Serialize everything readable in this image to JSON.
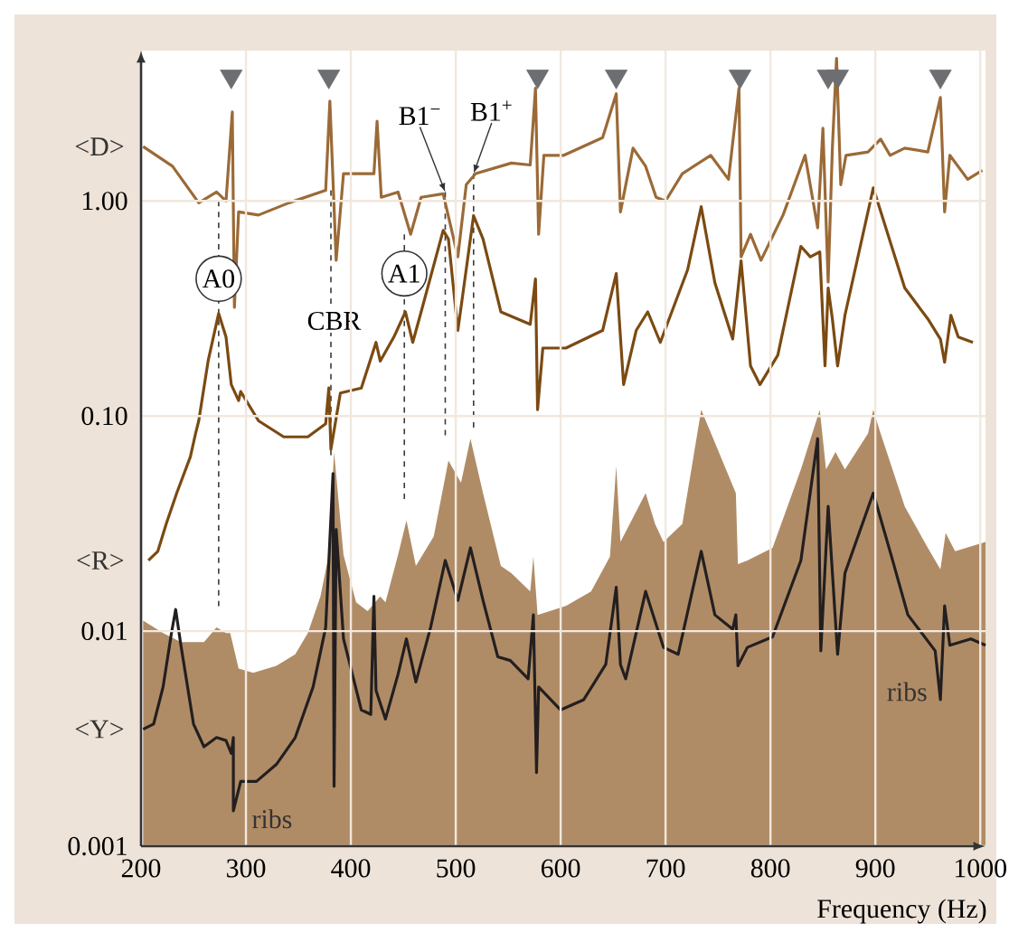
{
  "chart_data": {
    "type": "line",
    "xlabel": "Frequency (Hz)",
    "xlim": [
      200,
      1005
    ],
    "ylim": [
      0.001,
      5
    ],
    "xticks": [
      200,
      300,
      400,
      500,
      600,
      700,
      800,
      900,
      1000
    ],
    "yticks": [
      0.001,
      0.01,
      {
        "value": 0.1,
        "label": "0.10"
      },
      {
        "value": 1,
        "label": "1.00"
      }
    ],
    "log": "y",
    "grid": true,
    "series": [
      {
        "type": "area",
        "color": "#b08c66",
        "x": [
          202,
          221,
          238,
          260,
          272,
          281,
          285,
          293,
          307,
          329,
          347,
          359,
          371,
          379,
          384,
          393,
          405,
          416,
          428,
          433,
          445,
          453,
          462,
          479,
          493,
          505,
          514,
          526,
          543,
          553,
          571,
          574,
          578,
          605,
          629,
          647,
          653,
          657,
          681,
          690,
          698,
          716,
          734,
          767,
          769,
          778,
          802,
          829,
          847,
          853,
          862,
          871,
          893,
          898,
          905,
          928,
          950,
          962,
          967,
          976,
          1005
        ],
        "values": [
          0.0112,
          0.0098,
          0.0089,
          0.0089,
          0.0104,
          0.0098,
          0.0098,
          0.0067,
          0.0064,
          0.0069,
          0.0078,
          0.0098,
          0.0145,
          0.0226,
          0.068,
          0.0226,
          0.0136,
          0.0124,
          0.0145,
          0.0136,
          0.0226,
          0.0327,
          0.0201,
          0.0275,
          0.062,
          0.049,
          0.0785,
          0.0438,
          0.0201,
          0.0186,
          0.0153,
          0.0222,
          0.0119,
          0.0131,
          0.0153,
          0.0222,
          0.0586,
          0.026,
          0.0438,
          0.0315,
          0.026,
          0.0315,
          0.107,
          0.0438,
          0.0205,
          0.0213,
          0.0244,
          0.0564,
          0.107,
          0.0564,
          0.068,
          0.0564,
          0.083,
          0.107,
          0.083,
          0.038,
          0.0244,
          0.0194,
          0.0286,
          0.0235,
          0.026
        ]
      },
      {
        "type": "line",
        "line_style": "dashed",
        "color": "#3a3a3a",
        "x": [
          274,
          274
        ],
        "values": [
          1.0,
          0.0124
        ]
      },
      {
        "type": "line",
        "line_style": "dashed",
        "color": "#3a3a3a",
        "x": [
          381,
          381
        ],
        "values": [
          1.12,
          0.062
        ]
      },
      {
        "type": "line",
        "line_style": "dashed",
        "color": "#3a3a3a",
        "x": [
          451,
          451
        ],
        "values": [
          0.7,
          0.04
        ]
      },
      {
        "type": "line",
        "line_style": "dashed",
        "color": "#3a3a3a",
        "x": [
          490,
          490
        ],
        "values": [
          1.1,
          0.078
        ]
      },
      {
        "type": "line",
        "line_style": "dashed",
        "color": "#3a3a3a",
        "x": [
          517,
          517
        ],
        "values": [
          1.34,
          0.088
        ]
      },
      {
        "name": "<R>",
        "color": "#7b4a12",
        "x": [
          207,
          216,
          224,
          234,
          247,
          252,
          255,
          264,
          274,
          281,
          286,
          293,
          295,
          312,
          336,
          359,
          376,
          379,
          381,
          390,
          410,
          424,
          428,
          441,
          452,
          459,
          467,
          488,
          493,
          502,
          517,
          526,
          543,
          571,
          576,
          578,
          583,
          605,
          640,
          653,
          660,
          672,
          683,
          695,
          721,
          734,
          747,
          764,
          772,
          781,
          790,
          807,
          829,
          838,
          847,
          852,
          855,
          859,
          864,
          871,
          898,
          928,
          950,
          962,
          966,
          972,
          979,
          993
        ],
        "values": [
          0.0213,
          0.0235,
          0.0315,
          0.0438,
          0.0646,
          0.083,
          0.095,
          0.181,
          0.3,
          0.233,
          0.14,
          0.118,
          0.13,
          0.095,
          0.08,
          0.08,
          0.092,
          0.135,
          0.07,
          0.128,
          0.135,
          0.22,
          0.18,
          0.233,
          0.305,
          0.22,
          0.305,
          0.73,
          0.665,
          0.25,
          0.855,
          0.665,
          0.305,
          0.267,
          0.434,
          0.107,
          0.207,
          0.207,
          0.25,
          0.46,
          0.14,
          0.25,
          0.305,
          0.22,
          0.478,
          0.94,
          0.417,
          0.228,
          0.527,
          0.171,
          0.14,
          0.192,
          0.615,
          0.55,
          0.58,
          0.171,
          0.394,
          0.283,
          0.171,
          0.294,
          1.15,
          0.394,
          0.283,
          0.228,
          0.178,
          0.294,
          0.233,
          0.22
        ]
      },
      {
        "name": "<D>",
        "color": "#9b6a37",
        "x": [
          202,
          230,
          255,
          272,
          281,
          287,
          289,
          293,
          312,
          341,
          376,
          380,
          386,
          393,
          422,
          425,
          429,
          445,
          457,
          467,
          488,
          502,
          510,
          519,
          553,
          571,
          576,
          579,
          584,
          603,
          640,
          653,
          657,
          669,
          681,
          691,
          700,
          716,
          743,
          760,
          770,
          772,
          781,
          791,
          812,
          833,
          845,
          850,
          855,
          859,
          863,
          867,
          872,
          893,
          905,
          914,
          928,
          950,
          962,
          966,
          971,
          988,
          1002
        ],
        "values": [
          1.79,
          1.45,
          0.98,
          1.1,
          1.0,
          2.59,
          0.32,
          0.89,
          0.86,
          0.98,
          1.12,
          2.91,
          0.53,
          1.34,
          1.34,
          2.35,
          1.04,
          1.1,
          0.7,
          1.04,
          1.08,
          0.55,
          1.19,
          1.34,
          1.5,
          1.47,
          3.34,
          0.7,
          1.63,
          1.63,
          1.97,
          3.15,
          0.89,
          1.76,
          1.45,
          1.04,
          1.0,
          1.34,
          1.63,
          1.26,
          3.34,
          0.55,
          0.7,
          0.53,
          0.86,
          1.63,
          0.75,
          2.18,
          0.42,
          1.76,
          4.6,
          1.19,
          1.63,
          1.69,
          1.94,
          1.63,
          1.76,
          1.69,
          3.03,
          0.89,
          1.63,
          1.26,
          1.39
        ]
      },
      {
        "name": "<Y>",
        "color": "#231f20",
        "x": [
          202,
          212,
          221,
          229,
          233,
          238,
          250,
          260,
          272,
          281,
          286,
          288,
          288,
          295,
          310,
          329,
          347,
          364,
          376,
          383,
          384,
          386,
          393,
          410,
          419,
          422,
          424,
          433,
          445,
          453,
          462,
          476,
          490,
          502,
          514,
          526,
          540,
          552,
          569,
          574,
          577,
          579,
          600,
          622,
          643,
          653,
          657,
          662,
          681,
          698,
          712,
          734,
          747,
          764,
          767,
          769,
          778,
          802,
          829,
          845,
          848,
          855,
          864,
          871,
          898,
          915,
          931,
          957,
          962,
          966,
          971,
          991,
          1005
        ],
        "values": [
          0.0035,
          0.0037,
          0.0055,
          0.0098,
          0.0126,
          0.0086,
          0.0037,
          0.0029,
          0.0032,
          0.0031,
          0.0027,
          0.0032,
          0.00146,
          0.002,
          0.002,
          0.0024,
          0.0032,
          0.0055,
          0.0104,
          0.054,
          0.0019,
          0.0297,
          0.0092,
          0.0043,
          0.0041,
          0.0145,
          0.0053,
          0.0039,
          0.0063,
          0.0092,
          0.0058,
          0.0104,
          0.0213,
          0.0139,
          0.0244,
          0.0139,
          0.0076,
          0.0073,
          0.006,
          0.0119,
          0.0022,
          0.0055,
          0.0043,
          0.0048,
          0.007,
          0.016,
          0.007,
          0.006,
          0.0153,
          0.0084,
          0.0078,
          0.0235,
          0.0119,
          0.0102,
          0.0119,
          0.0069,
          0.0084,
          0.0094,
          0.0213,
          0.0785,
          0.0081,
          0.038,
          0.0078,
          0.0186,
          0.0438,
          0.0226,
          0.0119,
          0.0081,
          0.0048,
          0.0131,
          0.0086,
          0.0092,
          0.0086
        ]
      },
      {
        "type": "scatter",
        "marker": "triangle",
        "color": "#6d6e71",
        "x": [
          286,
          379,
          578,
          653,
          771,
          855,
          864,
          962
        ],
        "values": [
          3.8,
          3.8,
          3.8,
          3.8,
          3.8,
          3.8,
          3.8,
          3.8
        ]
      }
    ],
    "annotations": [
      {
        "text": "A0",
        "x": 274,
        "y": 0.435
      },
      {
        "text": "CBR",
        "x": 384,
        "y": 0.277
      },
      {
        "text": "A1",
        "x": 451,
        "y": 0.46
      },
      {
        "text": "B1$^{−}$",
        "x": 490,
        "y": 1.1
      },
      {
        "text": "B1$^{+}$",
        "x": 517,
        "y": 1.34
      },
      {
        "text": "ribs",
        "x": 288,
        "y": 0.00146
      },
      {
        "text": "ribs",
        "x": 962,
        "y": 0.0048
      }
    ]
  }
}
